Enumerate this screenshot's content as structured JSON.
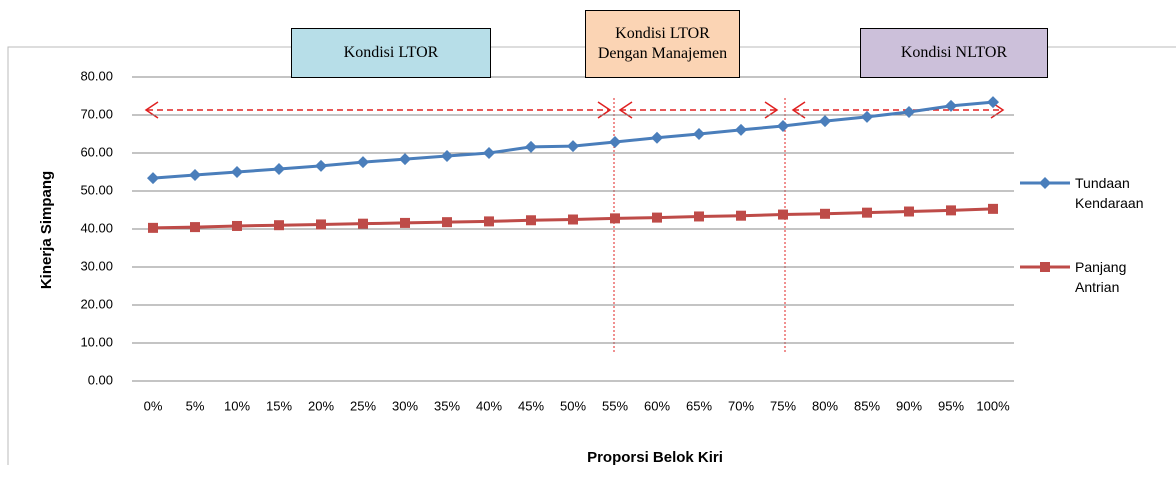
{
  "chart_data": {
    "type": "line",
    "x_label": "Proporsi Belok Kiri",
    "y_label": "Kinerja Simpang",
    "annotations": [
      "Kondisi LTOR",
      "Kondisi LTOR Dengan Manajemen",
      "Kondisi NLTOR"
    ],
    "categories": [
      "0%",
      "5%",
      "10%",
      "15%",
      "20%",
      "25%",
      "30%",
      "35%",
      "40%",
      "45%",
      "50%",
      "55%",
      "60%",
      "65%",
      "70%",
      "75%",
      "80%",
      "85%",
      "90%",
      "95%",
      "100%"
    ],
    "series": [
      {
        "name": "Tundaan Kendaraan",
        "color": "#4a7ebb",
        "marker": "diamond",
        "values": [
          53.4,
          54.2,
          55.0,
          55.8,
          56.6,
          57.6,
          58.4,
          59.2,
          60.0,
          61.6,
          61.8,
          62.9,
          64.0,
          65.0,
          66.1,
          67.1,
          68.4,
          69.5,
          70.8,
          72.4,
          73.4
        ]
      },
      {
        "name": "Panjang Antrian",
        "color": "#be4b48",
        "marker": "square",
        "values": [
          40.3,
          40.5,
          40.8,
          41.0,
          41.2,
          41.4,
          41.6,
          41.8,
          42.0,
          42.3,
          42.5,
          42.8,
          43.0,
          43.3,
          43.5,
          43.8,
          44.0,
          44.3,
          44.6,
          44.9,
          45.3
        ]
      }
    ],
    "ylim": [
      0,
      80
    ],
    "yticks": [
      {
        "value": 0,
        "label": "0.00"
      },
      {
        "value": 10,
        "label": "10.00"
      },
      {
        "value": 20,
        "label": "20.00"
      },
      {
        "value": 30,
        "label": "30.00"
      },
      {
        "value": 40,
        "label": "40.00"
      },
      {
        "value": 50,
        "label": "50.00"
      },
      {
        "value": 60,
        "label": "60.00"
      },
      {
        "value": 70,
        "label": "70.00"
      },
      {
        "value": 80,
        "label": "80.00"
      }
    ],
    "grid": true,
    "legend": "right"
  }
}
